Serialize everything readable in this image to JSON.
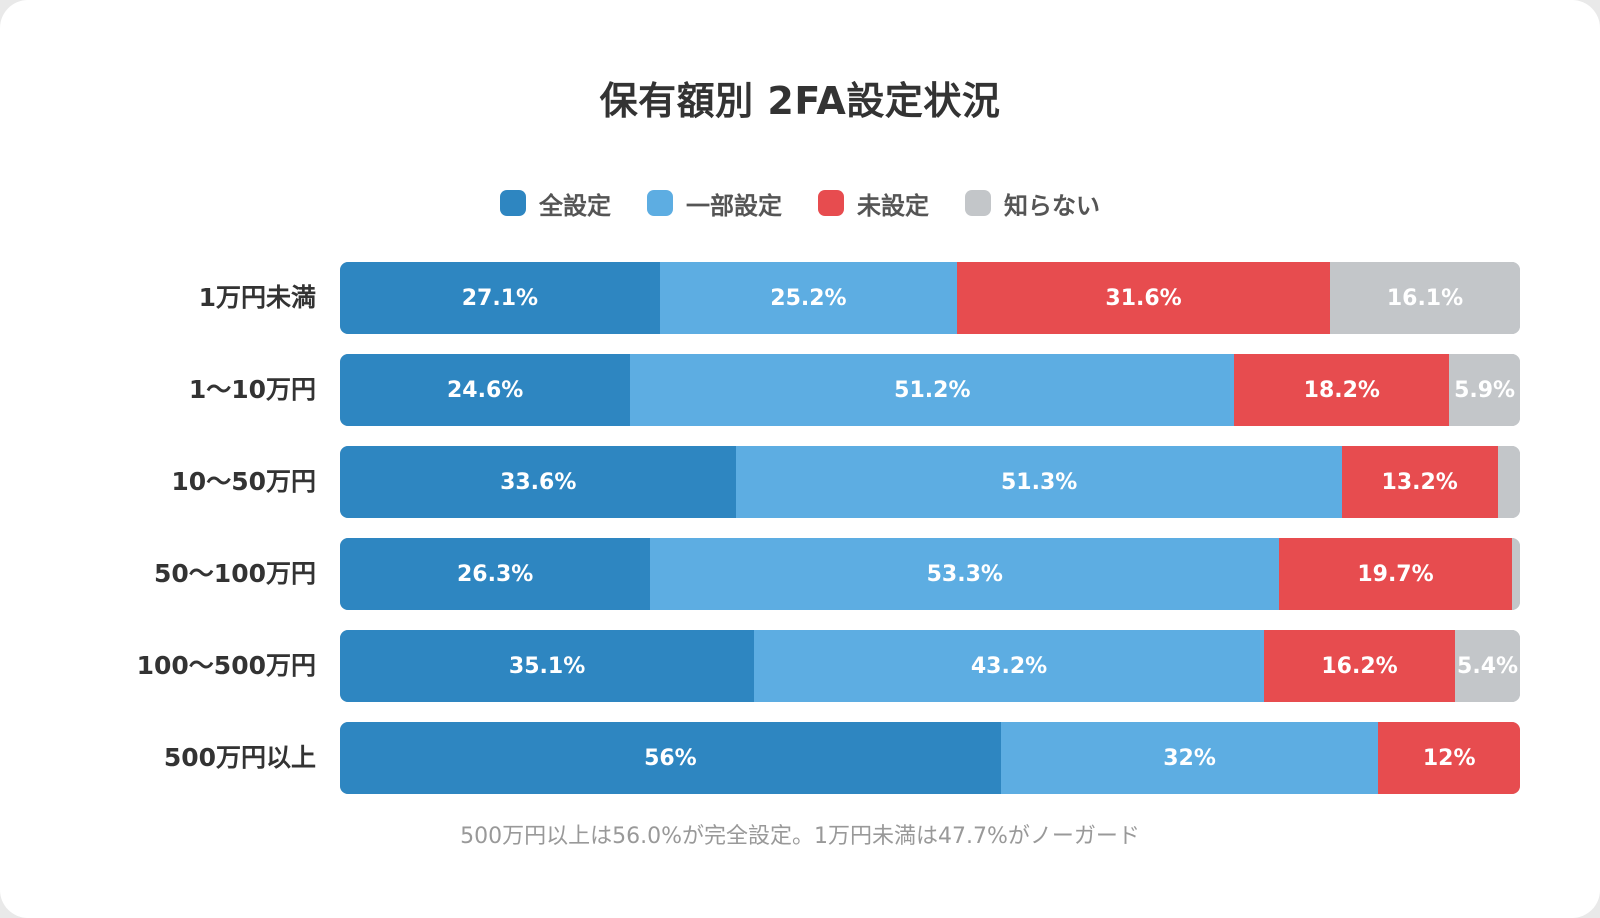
{
  "chart_data": {
    "type": "bar",
    "orientation": "horizontal",
    "stacked": true,
    "title": "保有額別 2FA設定状況",
    "categories": [
      "1万円未満",
      "1〜10万円",
      "10〜50万円",
      "50〜100万円",
      "100〜500万円",
      "500万円以上"
    ],
    "series": [
      {
        "name": "全設定",
        "color": "#2e86c1",
        "values": [
          27.1,
          24.6,
          33.6,
          26.3,
          35.1,
          56
        ]
      },
      {
        "name": "一部設定",
        "color": "#5dade2",
        "values": [
          25.2,
          51.2,
          51.3,
          53.3,
          43.2,
          32
        ]
      },
      {
        "name": "未設定",
        "color": "#e74c4f",
        "values": [
          31.6,
          18.2,
          13.2,
          19.7,
          16.2,
          12
        ]
      },
      {
        "name": "知らない",
        "color": "#c3c6c9",
        "values": [
          16.1,
          5.9,
          1.9,
          0.7,
          5.4,
          0
        ]
      }
    ],
    "data_labels": [
      [
        "27.1%",
        "25.2%",
        "31.6%",
        "16.1%"
      ],
      [
        "24.6%",
        "51.2%",
        "18.2%",
        "5.9%"
      ],
      [
        "33.6%",
        "51.3%",
        "13.2%",
        ""
      ],
      [
        "26.3%",
        "53.3%",
        "19.7%",
        ""
      ],
      [
        "35.1%",
        "43.2%",
        "16.2%",
        "5.4%"
      ],
      [
        "56%",
        "32%",
        "12%",
        ""
      ]
    ],
    "xlim": [
      0,
      100
    ],
    "legend_position": "top",
    "grid": false,
    "footnote": "500万円以上は56.0%が完全設定。1万円未満は47.7%がノーガード"
  }
}
